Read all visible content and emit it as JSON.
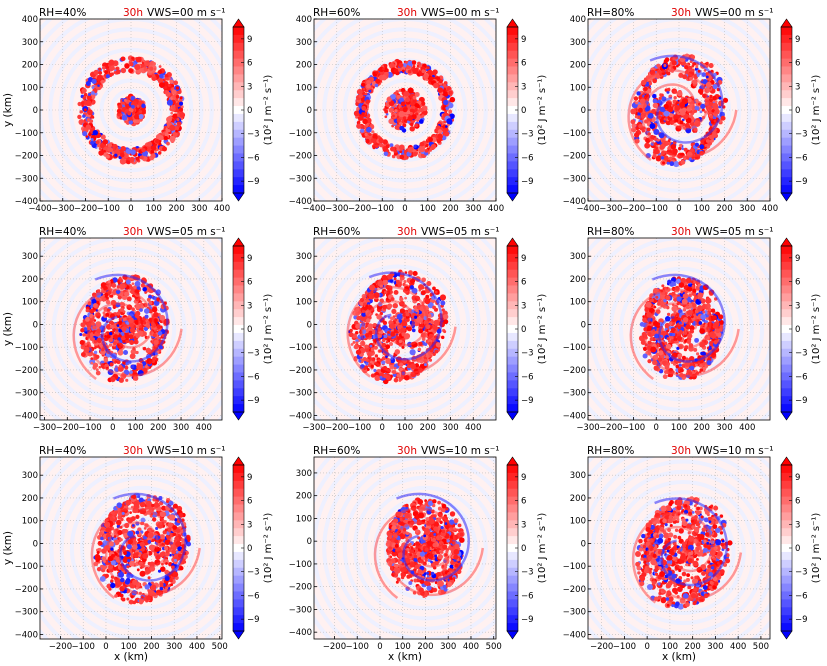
{
  "figure": {
    "colorbar_label": "(10² J m⁻² s⁻¹)",
    "colorbar_ticks": [
      "9",
      "6",
      "3",
      "0",
      "−3",
      "−6",
      "−9"
    ],
    "colorbar_range": [
      -10.5,
      10.5
    ],
    "colormap": "bwr"
  },
  "chart_data": [
    {
      "type": "heatmap",
      "row": 0,
      "col": 0,
      "rh": "RH=40%",
      "time": "30h",
      "vws": "VWS=00 m s⁻¹",
      "xlabel": "",
      "ylabel": "y (km)",
      "xlim": [
        -400,
        400
      ],
      "ylim": [
        -400,
        400
      ],
      "xticks": [
        -400,
        -300,
        -200,
        -100,
        0,
        100,
        200,
        300,
        400
      ],
      "yticks": [
        -400,
        -300,
        -200,
        -100,
        0,
        100,
        200,
        300,
        400
      ],
      "feature": {
        "center": [
          0,
          0
        ],
        "ring_radius": 200,
        "ring_width": 30,
        "inner_radius": 60,
        "spiral": 0
      }
    },
    {
      "type": "heatmap",
      "row": 0,
      "col": 1,
      "rh": "RH=60%",
      "time": "30h",
      "vws": "VWS=00 m s⁻¹",
      "xlabel": "",
      "ylabel": "",
      "xlim": [
        -400,
        400
      ],
      "ylim": [
        -400,
        400
      ],
      "xticks": [
        -400,
        -300,
        -200,
        -100,
        0,
        100,
        200,
        300,
        400
      ],
      "yticks": [
        -400,
        -300,
        -200,
        -100,
        0,
        100,
        200,
        300,
        400
      ],
      "feature": {
        "center": [
          0,
          0
        ],
        "ring_radius": 190,
        "ring_width": 25,
        "inner_radius": 90,
        "spiral": 0
      }
    },
    {
      "type": "heatmap",
      "row": 0,
      "col": 2,
      "rh": "RH=80%",
      "time": "30h",
      "vws": "VWS=00 m s⁻¹",
      "xlabel": "",
      "ylabel": "",
      "xlim": [
        -400,
        400
      ],
      "ylim": [
        -400,
        400
      ],
      "xticks": [
        -400,
        -300,
        -200,
        -100,
        0,
        100,
        200,
        300,
        400
      ],
      "yticks": [
        -400,
        -300,
        -200,
        -100,
        0,
        100,
        200,
        300,
        400
      ],
      "feature": {
        "center": [
          0,
          0
        ],
        "ring_radius": 180,
        "ring_width": 40,
        "inner_radius": 100,
        "spiral": 1
      }
    },
    {
      "type": "heatmap",
      "row": 1,
      "col": 0,
      "rh": "RH=40%",
      "time": "30h",
      "vws": "VWS=05 m s⁻¹",
      "xlabel": "",
      "ylabel": "y (km)",
      "xlim": [
        -320,
        480
      ],
      "ylim": [
        -420,
        380
      ],
      "xticks": [
        -300,
        -200,
        -100,
        0,
        100,
        200,
        300,
        400
      ],
      "yticks": [
        -400,
        -300,
        -200,
        -100,
        0,
        100,
        200,
        300
      ],
      "feature": {
        "center": [
          50,
          -20
        ],
        "ring_radius": 170,
        "ring_width": 40,
        "inner_radius": 120,
        "spiral": 1
      }
    },
    {
      "type": "heatmap",
      "row": 1,
      "col": 1,
      "rh": "RH=60%",
      "time": "30h",
      "vws": "VWS=05 m s⁻¹",
      "xlabel": "",
      "ylabel": "",
      "xlim": [
        -300,
        500
      ],
      "ylim": [
        -420,
        380
      ],
      "xticks": [
        -300,
        -200,
        -100,
        0,
        100,
        200,
        300,
        400
      ],
      "yticks": [
        -400,
        -300,
        -200,
        -100,
        0,
        100,
        200,
        300
      ],
      "feature": {
        "center": [
          70,
          -10
        ],
        "ring_radius": 180,
        "ring_width": 45,
        "inner_radius": 140,
        "spiral": 1
      }
    },
    {
      "type": "heatmap",
      "row": 1,
      "col": 2,
      "rh": "RH=80%",
      "time": "30h",
      "vws": "VWS=05 m s⁻¹",
      "xlabel": "",
      "ylabel": "",
      "xlim": [
        -300,
        500
      ],
      "ylim": [
        -420,
        380
      ],
      "xticks": [
        -300,
        -200,
        -100,
        0,
        100,
        200,
        300,
        400
      ],
      "yticks": [
        -400,
        -300,
        -200,
        -100,
        0,
        100,
        200,
        300
      ],
      "feature": {
        "center": [
          110,
          -20
        ],
        "ring_radius": 160,
        "ring_width": 40,
        "inner_radius": 120,
        "spiral": 1
      }
    },
    {
      "type": "heatmap",
      "row": 2,
      "col": 0,
      "rh": "RH=40%",
      "time": "30h",
      "vws": "VWS=10 m s⁻¹",
      "xlabel": "x (km)",
      "ylabel": "y (km)",
      "xlim": [
        -290,
        510
      ],
      "ylim": [
        -420,
        380
      ],
      "xticks": [
        -200,
        -100,
        0,
        100,
        200,
        300,
        400,
        500
      ],
      "yticks": [
        -400,
        -300,
        -200,
        -100,
        0,
        100,
        200,
        300
      ],
      "feature": {
        "center": [
          160,
          -20
        ],
        "ring_radius": 180,
        "ring_width": 40,
        "inner_radius": 130,
        "spiral": 1
      }
    },
    {
      "type": "heatmap",
      "row": 2,
      "col": 1,
      "rh": "RH=60%",
      "time": "30h",
      "vws": "VWS=10 m s⁻¹",
      "xlabel": "x (km)",
      "ylabel": "",
      "xlim": [
        -290,
        510
      ],
      "ylim": [
        -430,
        370
      ],
      "xticks": [
        -200,
        -100,
        0,
        100,
        200,
        300,
        400,
        500
      ],
      "yticks": [
        -400,
        -300,
        -200,
        -100,
        0,
        100,
        200,
        300
      ],
      "feature": {
        "center": [
          200,
          -30
        ],
        "ring_radius": 150,
        "ring_width": 40,
        "inner_radius": 120,
        "spiral": 1
      }
    },
    {
      "type": "heatmap",
      "row": 2,
      "col": 2,
      "rh": "RH=80%",
      "time": "30h",
      "vws": "VWS=10 m s⁻¹",
      "xlabel": "x (km)",
      "ylabel": "",
      "xlim": [
        -260,
        540
      ],
      "ylim": [
        -420,
        380
      ],
      "xticks": [
        -200,
        -100,
        0,
        100,
        200,
        300,
        400,
        500
      ],
      "yticks": [
        -400,
        -300,
        -200,
        -100,
        0,
        100,
        200,
        300
      ],
      "feature": {
        "center": [
          160,
          -40
        ],
        "ring_radius": 170,
        "ring_width": 50,
        "inner_radius": 140,
        "spiral": 1
      }
    }
  ]
}
